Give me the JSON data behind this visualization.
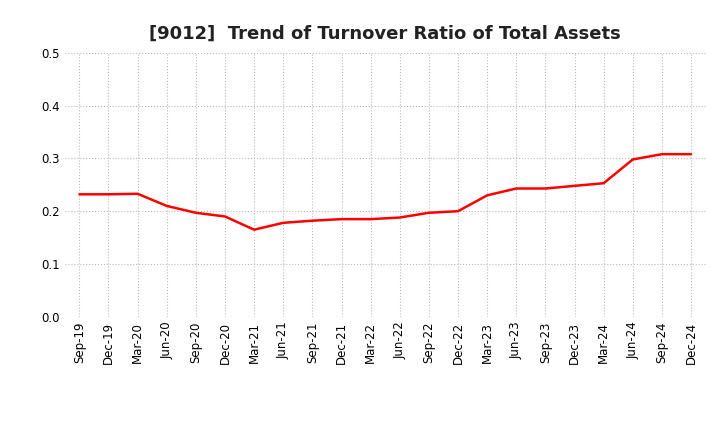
{
  "title": "[9012]  Trend of Turnover Ratio of Total Assets",
  "x_labels": [
    "Sep-19",
    "Dec-19",
    "Mar-20",
    "Jun-20",
    "Sep-20",
    "Dec-20",
    "Mar-21",
    "Jun-21",
    "Sep-21",
    "Dec-21",
    "Mar-22",
    "Jun-22",
    "Sep-22",
    "Dec-22",
    "Mar-23",
    "Jun-23",
    "Sep-23",
    "Dec-23",
    "Mar-24",
    "Jun-24",
    "Sep-24",
    "Dec-24"
  ],
  "y_values": [
    0.232,
    0.232,
    0.233,
    0.21,
    0.197,
    0.19,
    0.165,
    0.178,
    0.182,
    0.185,
    0.185,
    0.188,
    0.197,
    0.2,
    0.23,
    0.243,
    0.243,
    0.248,
    0.253,
    0.298,
    0.308,
    0.308
  ],
  "line_color": "#ff0000",
  "line_width": 1.8,
  "ylim": [
    0.0,
    0.5
  ],
  "yticks": [
    0.0,
    0.1,
    0.2,
    0.3,
    0.4,
    0.5
  ],
  "grid_color": "#bbbbbb",
  "grid_linestyle": ":",
  "background_color": "#ffffff",
  "title_fontsize": 13,
  "tick_fontsize": 8.5
}
